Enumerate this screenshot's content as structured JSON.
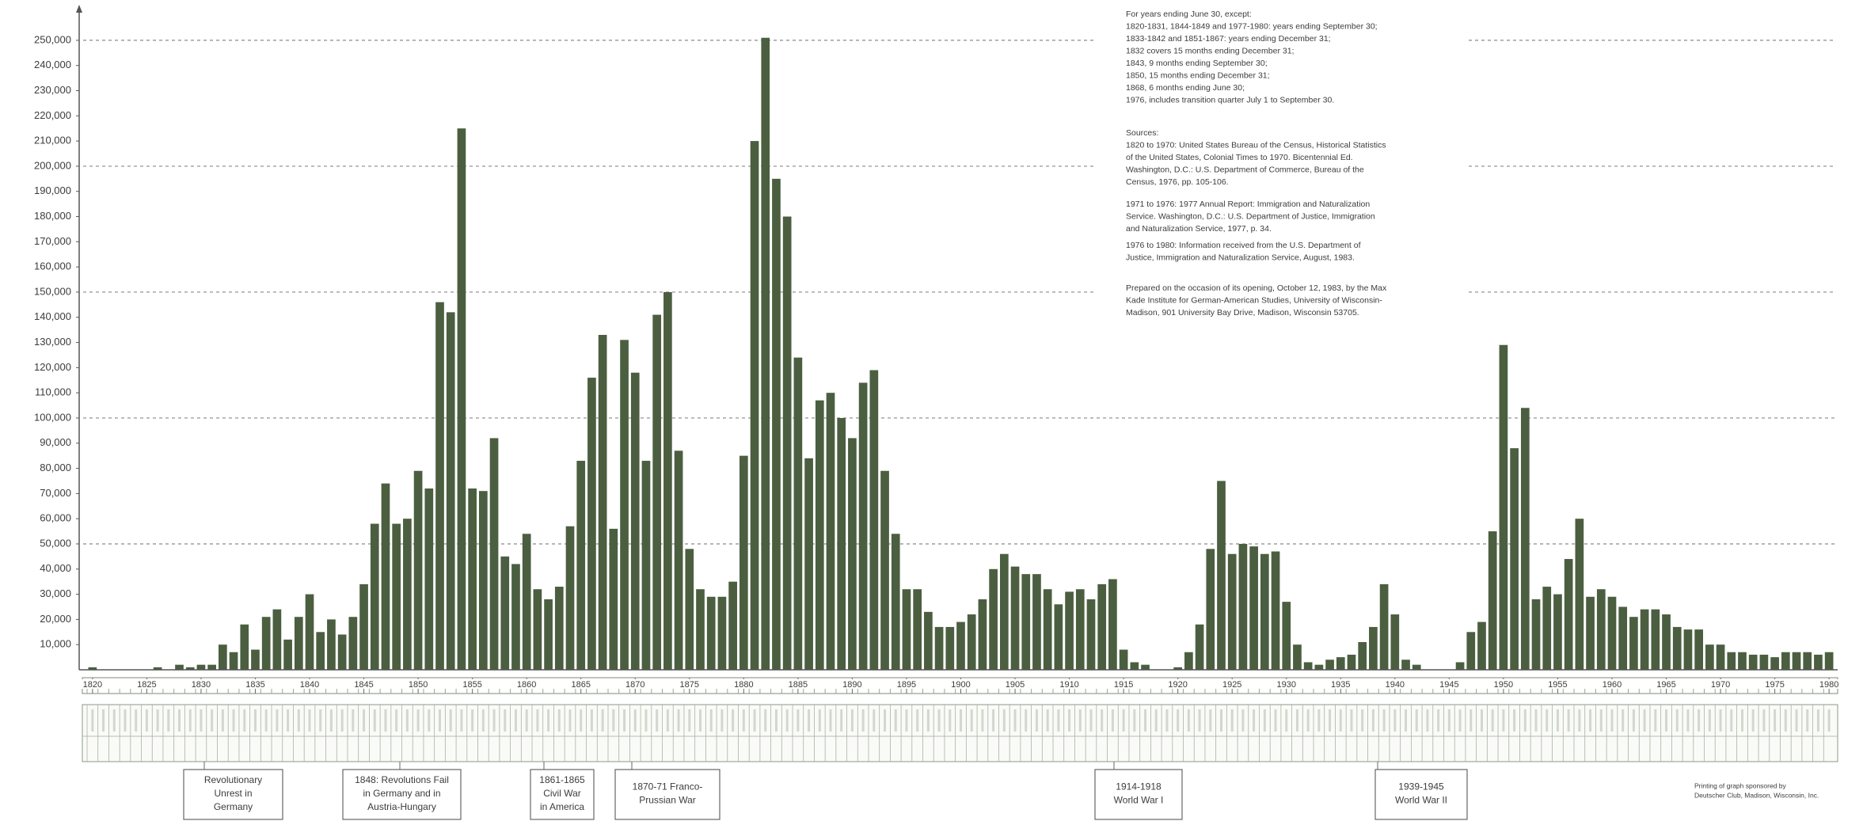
{
  "chart_data": {
    "type": "bar",
    "color": "#4b5f40",
    "x": [
      1820,
      1821,
      1822,
      1823,
      1824,
      1825,
      1826,
      1827,
      1828,
      1829,
      1830,
      1831,
      1832,
      1833,
      1834,
      1835,
      1836,
      1837,
      1838,
      1839,
      1840,
      1841,
      1842,
      1843,
      1844,
      1845,
      1846,
      1847,
      1848,
      1849,
      1850,
      1851,
      1852,
      1853,
      1854,
      1855,
      1856,
      1857,
      1858,
      1859,
      1860,
      1861,
      1862,
      1863,
      1864,
      1865,
      1866,
      1867,
      1868,
      1869,
      1870,
      1871,
      1872,
      1873,
      1874,
      1875,
      1876,
      1877,
      1878,
      1879,
      1880,
      1881,
      1882,
      1883,
      1884,
      1885,
      1886,
      1887,
      1888,
      1889,
      1890,
      1891,
      1892,
      1893,
      1894,
      1895,
      1896,
      1897,
      1898,
      1899,
      1900,
      1901,
      1902,
      1903,
      1904,
      1905,
      1906,
      1907,
      1908,
      1909,
      1910,
      1911,
      1912,
      1913,
      1914,
      1915,
      1916,
      1917,
      1918,
      1919,
      1920,
      1921,
      1922,
      1923,
      1924,
      1925,
      1926,
      1927,
      1928,
      1929,
      1930,
      1931,
      1932,
      1933,
      1934,
      1935,
      1936,
      1937,
      1938,
      1939,
      1940,
      1941,
      1942,
      1943,
      1944,
      1945,
      1946,
      1947,
      1948,
      1949,
      1950,
      1951,
      1952,
      1953,
      1954,
      1955,
      1956,
      1957,
      1958,
      1959,
      1960,
      1961,
      1962,
      1963,
      1964,
      1965,
      1966,
      1967,
      1968,
      1969,
      1970,
      1971,
      1972,
      1973,
      1974,
      1975,
      1976,
      1977,
      1978,
      1979,
      1980
    ],
    "values": [
      1000,
      0,
      0,
      0,
      0,
      0,
      1000,
      0,
      2000,
      1000,
      2000,
      2000,
      10000,
      7000,
      18000,
      8000,
      21000,
      24000,
      12000,
      21000,
      30000,
      15000,
      20000,
      14000,
      21000,
      34000,
      58000,
      74000,
      58000,
      60000,
      79000,
      72000,
      146000,
      142000,
      215000,
      72000,
      71000,
      92000,
      45000,
      42000,
      54000,
      32000,
      28000,
      33000,
      57000,
      83000,
      116000,
      133000,
      56000,
      131000,
      118000,
      83000,
      141000,
      150000,
      87000,
      48000,
      32000,
      29000,
      29000,
      35000,
      85000,
      210000,
      251000,
      195000,
      180000,
      124000,
      84000,
      107000,
      110000,
      100000,
      92000,
      114000,
      119000,
      79000,
      54000,
      32000,
      32000,
      23000,
      17000,
      17000,
      19000,
      22000,
      28000,
      40000,
      46000,
      41000,
      38000,
      38000,
      32000,
      26000,
      31000,
      32000,
      28000,
      34000,
      36000,
      8000,
      3000,
      2000,
      0,
      0,
      1000,
      7000,
      18000,
      48000,
      75000,
      46000,
      50000,
      49000,
      46000,
      47000,
      27000,
      10000,
      3000,
      2000,
      4000,
      5000,
      6000,
      11000,
      17000,
      34000,
      22000,
      4000,
      2000,
      0,
      0,
      0,
      3000,
      15000,
      19000,
      55000,
      129000,
      88000,
      104000,
      28000,
      33000,
      30000,
      44000,
      60000,
      29000,
      32000,
      29000,
      25000,
      21000,
      24000,
      24000,
      22000,
      17000,
      16000,
      16000,
      10000,
      10000,
      7000,
      7000,
      6000,
      6000,
      5000,
      7000,
      7000,
      7000,
      6000,
      7000
    ],
    "xlim": [
      1819.5,
      1980.5
    ],
    "xticks": [
      1820,
      1825,
      1830,
      1835,
      1840,
      1845,
      1850,
      1855,
      1860,
      1865,
      1870,
      1875,
      1880,
      1885,
      1890,
      1895,
      1900,
      1905,
      1910,
      1915,
      1920,
      1925,
      1930,
      1935,
      1940,
      1945,
      1950,
      1955,
      1960,
      1965,
      1970,
      1975,
      1980
    ],
    "ylim": [
      0,
      255000
    ],
    "yticks": [
      {
        "value": 10000,
        "label": "10,000"
      },
      {
        "value": 20000,
        "label": "20,000"
      },
      {
        "value": 30000,
        "label": "30,000"
      },
      {
        "value": 40000,
        "label": "40,000"
      },
      {
        "value": 50000,
        "label": "50,000"
      },
      {
        "value": 60000,
        "label": "60,000"
      },
      {
        "value": 70000,
        "label": "70,000"
      },
      {
        "value": 80000,
        "label": "80,000"
      },
      {
        "value": 90000,
        "label": "90,000"
      },
      {
        "value": 100000,
        "label": "100,000"
      },
      {
        "value": 110000,
        "label": "110,000"
      },
      {
        "value": 120000,
        "label": "120,000"
      },
      {
        "value": 130000,
        "label": "130,000"
      },
      {
        "value": 140000,
        "label": "140,000"
      },
      {
        "value": 150000,
        "label": "150,000"
      },
      {
        "value": 160000,
        "label": "160,000"
      },
      {
        "value": 170000,
        "label": "170,000"
      },
      {
        "value": 180000,
        "label": "180,000"
      },
      {
        "value": 190000,
        "label": "190,000"
      },
      {
        "value": 200000,
        "label": "200,000"
      },
      {
        "value": 210000,
        "label": "210,000"
      },
      {
        "value": 220000,
        "label": "220,000"
      },
      {
        "value": 230000,
        "label": "230,000"
      },
      {
        "value": 240000,
        "label": "240,000"
      },
      {
        "value": 250000,
        "label": "250,000"
      }
    ],
    "grid_values": [
      50000,
      100000,
      150000,
      200000,
      250000
    ],
    "notes": [
      [
        "For years ending June 30, except:",
        "1820-1831, 1844-1849 and 1977-1980: years ending September 30;",
        "1833-1842 and 1851-1867: years ending December 31;",
        "1832 covers 15 months ending December 31;",
        "1843, 9 months ending September 30;",
        "1850, 15 months ending December 31;",
        "1868, 6 months ending June 30;",
        "1976, includes transition quarter July 1 to September 30."
      ],
      [
        "Sources:",
        "1820 to 1970: United States Bureau of the Census, Historical Statistics",
        "of the United States, Colonial Times to 1970. Bicentennial Ed.",
        "Washington, D.C.: U.S. Department of Commerce, Bureau of the",
        "Census, 1976, pp. 105-106."
      ],
      [
        "1971 to 1976: 1977 Annual Report: Immigration and Naturalization",
        "Service. Washington, D.C.: U.S. Department of Justice, Immigration",
        "and Naturalization Service, 1977, p. 34."
      ],
      [
        "1976 to 1980: Information received from the U.S. Department of",
        "Justice, Immigration and Naturalization Service, August, 1983."
      ],
      [
        "Prepared on the occasion of its opening, October 12, 1983, by the Max",
        "Kade Institute for German-American Studies, University of Wisconsin-",
        "Madison, 901 University Bay Drive, Madison, Wisconsin 53705."
      ]
    ],
    "events": [
      {
        "lines": [
          "Revolutionary",
          "Unrest in",
          "Germany"
        ]
      },
      {
        "lines": [
          "1848: Revolutions Fail",
          "in Germany and in",
          "Austria-Hungary"
        ]
      },
      {
        "lines": [
          "1861-1865",
          "Civil War",
          "in America"
        ]
      },
      {
        "lines": [
          "1870-71 Franco-",
          "Prussian War"
        ]
      },
      {
        "lines": [
          "1914-1918",
          "World War I"
        ]
      },
      {
        "lines": [
          "1939-1945",
          "World War II"
        ]
      }
    ],
    "credit": [
      "Printing of graph sponsored by",
      "Deutscher Club, Madison, Wisconsin, Inc."
    ]
  }
}
